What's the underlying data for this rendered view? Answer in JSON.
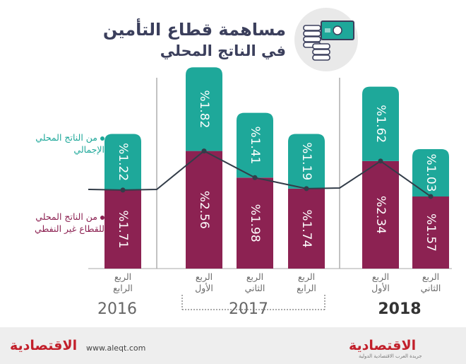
{
  "header": {
    "title_line1": "مساهمة قطاع التأمين",
    "title_line2": "في الناتج المحلي",
    "icon": "money-icon"
  },
  "legend": {
    "total_line1": "من الناتج المحلي",
    "total_line2": "الإجمالي",
    "nonoil_line1": "من الناتج المحلي",
    "nonoil_line2": "للقطاع غير النفطي"
  },
  "chart_data": {
    "type": "bar",
    "title": "مساهمة قطاع التأمين في الناتج المحلي",
    "categories": [
      {
        "line1": "الربع",
        "line2": "الرابع",
        "year": "2016"
      },
      {
        "line1": "الربع",
        "line2": "الأول",
        "year": "2017"
      },
      {
        "line1": "الربع",
        "line2": "الثاني",
        "year": "2017"
      },
      {
        "line1": "الربع",
        "line2": "الرابع",
        "year": "2017"
      },
      {
        "line1": "الربع",
        "line2": "الأول",
        "year": "2018"
      },
      {
        "line1": "الربع",
        "line2": "الثاني",
        "year": "2018"
      }
    ],
    "series": [
      {
        "name": "من الناتج المحلي للقطاع غير النفطي",
        "values": [
          1.71,
          2.56,
          1.98,
          1.74,
          2.34,
          1.57
        ],
        "labels": [
          "%1.71",
          "%2.56",
          "%1.98",
          "%1.74",
          "%2.34",
          "%1.57"
        ],
        "color": "#8c2252"
      },
      {
        "name": "من الناتج المحلي الإجمالي",
        "values": [
          1.22,
          1.82,
          1.41,
          1.19,
          1.62,
          1.03
        ],
        "labels": [
          "%1.22",
          "%1.82",
          "%1.41",
          "%1.19",
          "%1.62",
          "%1.03"
        ],
        "color": "#1ea89a"
      }
    ],
    "years": [
      "2016",
      "2017",
      "2018"
    ],
    "ylim": [
      0,
      4.6
    ],
    "grid": false,
    "legend_position": "left"
  },
  "footer": {
    "website": "www.aleqt.com",
    "brand": "الاقتصادية",
    "brand_sub": "جريدة العرب الاقتصادية الدولية"
  },
  "colors": {
    "nonoil": "#8c2252",
    "total": "#1ea89a",
    "title": "#3b3f5c",
    "brand_red": "#c2202b"
  }
}
